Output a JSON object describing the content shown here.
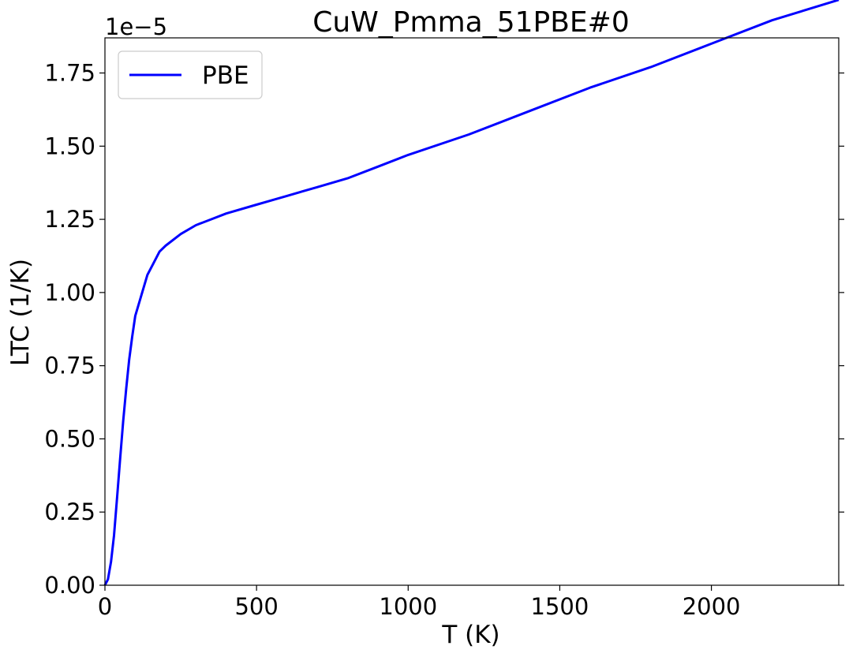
{
  "chart_data": {
    "type": "line",
    "title": "CuW_Pmma_51PBE#0",
    "xlabel": "T (K)",
    "ylabel": "LTC (1/K)",
    "y_offset_text": "1e−5",
    "xlim": [
      0,
      2420
    ],
    "ylim": [
      0.0,
      1.87
    ],
    "x_ticks": [
      0,
      500,
      1000,
      1500,
      2000
    ],
    "x_tick_labels": [
      "0",
      "500",
      "1000",
      "1500",
      "2000"
    ],
    "y_ticks": [
      0.0,
      0.25,
      0.5,
      0.75,
      1.0,
      1.25,
      1.5,
      1.75
    ],
    "y_tick_labels": [
      "0.00",
      "0.25",
      "0.50",
      "0.75",
      "1.00",
      "1.25",
      "1.50",
      "1.75"
    ],
    "grid": false,
    "legend_position": "top-left",
    "series": [
      {
        "name": "PBE",
        "color": "#0000ff",
        "x": [
          0,
          10,
          20,
          30,
          40,
          50,
          60,
          70,
          80,
          90,
          100,
          120,
          140,
          160,
          180,
          200,
          250,
          300,
          350,
          400,
          500,
          600,
          700,
          800,
          900,
          1000,
          1200,
          1400,
          1600,
          1800,
          2000,
          2200,
          2420
        ],
        "y": [
          0.0,
          0.02,
          0.08,
          0.17,
          0.3,
          0.43,
          0.56,
          0.67,
          0.77,
          0.85,
          0.92,
          0.99,
          1.06,
          1.1,
          1.14,
          1.16,
          1.2,
          1.23,
          1.25,
          1.27,
          1.3,
          1.33,
          1.36,
          1.39,
          1.43,
          1.47,
          1.54,
          1.62,
          1.7,
          1.77,
          1.85,
          1.93,
          2.0
        ]
      }
    ]
  }
}
